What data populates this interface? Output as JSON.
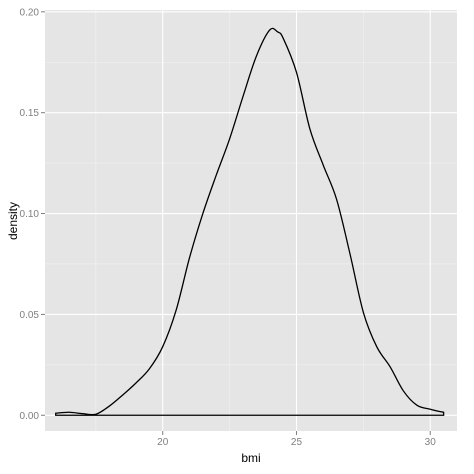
{
  "chart_data": {
    "type": "area",
    "xlabel": "bmi",
    "ylabel": "density",
    "xlim": [
      15.6,
      31.0
    ],
    "ylim": [
      -0.0078,
      0.2009
    ],
    "x_ticks": [
      20,
      25,
      30
    ],
    "x_tick_labels": [
      "20",
      "25",
      "30"
    ],
    "y_ticks": [
      0.0,
      0.05,
      0.1,
      0.15,
      0.2
    ],
    "y_tick_labels": [
      "0.00",
      "0.05",
      "0.10",
      "0.15",
      "0.20"
    ],
    "grid": true,
    "legend": "none",
    "colors": {
      "panel": "#e5e5e5",
      "grid_major": "#ffffff",
      "grid_minor": "#f2f2f2",
      "line": "#000000"
    },
    "series": [
      {
        "x": [
          16.0,
          16.5,
          17.0,
          17.5,
          18.0,
          18.5,
          19.0,
          19.5,
          20.0,
          20.5,
          21.0,
          21.5,
          22.0,
          22.5,
          23.0,
          23.5,
          24.0,
          24.3,
          24.5,
          25.0,
          25.5,
          26.0,
          26.5,
          27.0,
          27.5,
          28.0,
          28.5,
          29.0,
          29.5,
          30.0,
          30.3,
          30.5
        ],
        "values": [
          0.001,
          0.0015,
          0.0008,
          0.0005,
          0.0045,
          0.01,
          0.016,
          0.023,
          0.034,
          0.052,
          0.078,
          0.1,
          0.119,
          0.137,
          0.158,
          0.178,
          0.191,
          0.19,
          0.187,
          0.17,
          0.142,
          0.124,
          0.107,
          0.08,
          0.051,
          0.034,
          0.024,
          0.012,
          0.005,
          0.003,
          0.002,
          0.0015
        ]
      }
    ]
  }
}
